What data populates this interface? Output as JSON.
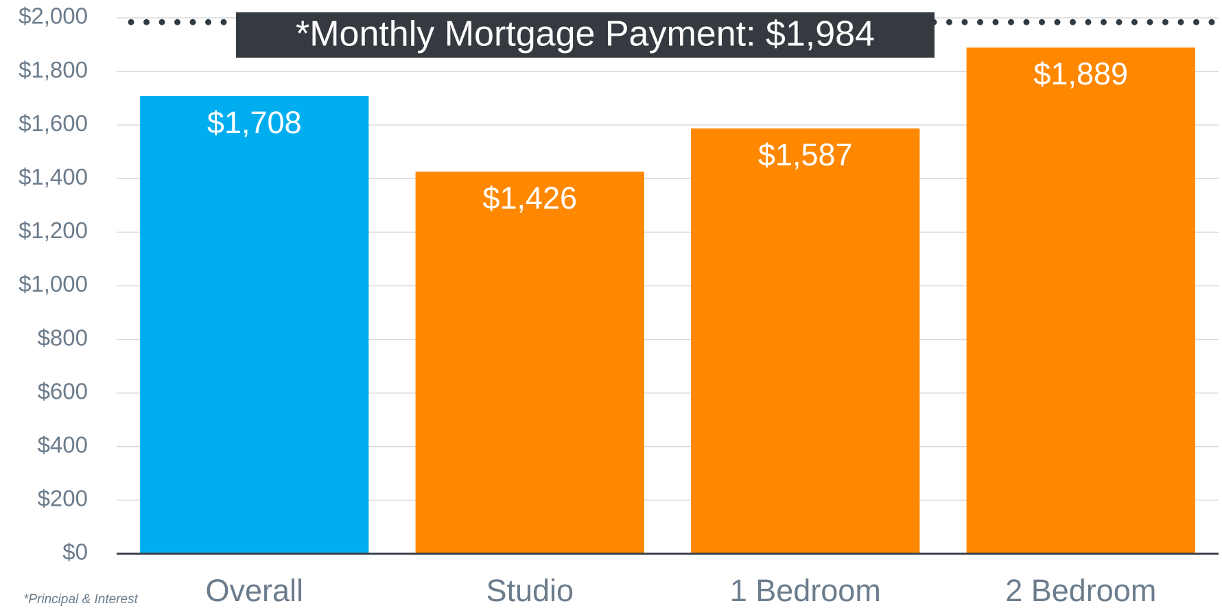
{
  "chart_data": {
    "type": "bar",
    "categories": [
      "Overall",
      "Studio",
      "1 Bedroom",
      "2 Bedroom"
    ],
    "values": [
      1708,
      1426,
      1587,
      1889
    ],
    "value_labels": [
      "$1,708",
      "$1,426",
      "$1,587",
      "$1,889"
    ],
    "colors": [
      "#00aeef",
      "#ff8800",
      "#ff8800",
      "#ff8800"
    ],
    "ylim": [
      0,
      2000
    ],
    "yticks": [
      {
        "value": 0,
        "label": "$0"
      },
      {
        "value": 200,
        "label": "$200"
      },
      {
        "value": 400,
        "label": "$400"
      },
      {
        "value": 600,
        "label": "$600"
      },
      {
        "value": 800,
        "label": "$800"
      },
      {
        "value": 1000,
        "label": "$1,000"
      },
      {
        "value": 1200,
        "label": "$1,200"
      },
      {
        "value": 1400,
        "label": "$1,400"
      },
      {
        "value": 1600,
        "label": "$1,600"
      },
      {
        "value": 1800,
        "label": "$1,800"
      },
      {
        "value": 2000,
        "label": "$2,000"
      }
    ],
    "grid": true,
    "reference_line": {
      "value": 1984,
      "label": "*Monthly Mortgage Payment: $1,984",
      "color": "#2f3a42"
    },
    "footnote": "*Principal & Interest"
  }
}
